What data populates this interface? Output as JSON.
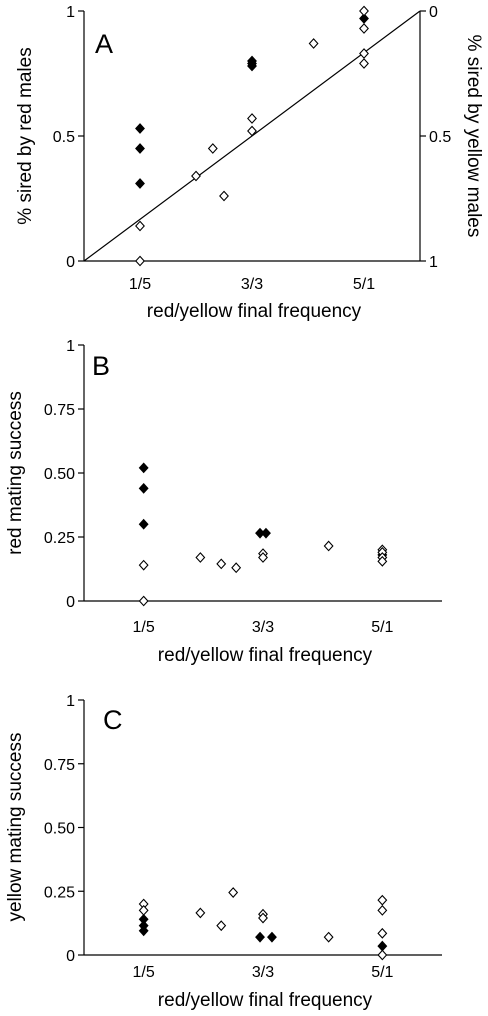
{
  "chart_data": [
    {
      "type": "scatter",
      "panel_label": "A",
      "xlabel": "red/yellow final frequency",
      "ylabel": "% sired by red males",
      "ylabel_right": "% sired by yellow males",
      "categories": [
        "1/5",
        "3/3",
        "5/1"
      ],
      "xlim": [
        0,
        6
      ],
      "ylim": [
        0,
        1
      ],
      "yticks": [
        {
          "value": 0,
          "label": "0"
        },
        {
          "value": 0.5,
          "label": "0.5"
        },
        {
          "value": 1,
          "label": "1"
        }
      ],
      "yticks_right": [
        {
          "value": 1,
          "label": "0"
        },
        {
          "value": 0.5,
          "label": "0.5"
        },
        {
          "value": 0,
          "label": "1"
        }
      ],
      "reference_line": {
        "from": [
          0,
          0
        ],
        "to": [
          6,
          1
        ]
      },
      "series": [
        {
          "marker": "filled-diamond",
          "points": [
            {
              "x": 1,
              "y": 0.53
            },
            {
              "x": 1,
              "y": 0.45
            },
            {
              "x": 1,
              "y": 0.31
            },
            {
              "x": 3,
              "y": 0.8
            },
            {
              "x": 3,
              "y": 0.79
            },
            {
              "x": 3,
              "y": 0.78
            },
            {
              "x": 5,
              "y": 0.97
            }
          ]
        },
        {
          "marker": "open-diamond",
          "points": [
            {
              "x": 1,
              "y": 0.14
            },
            {
              "x": 1,
              "y": 0.0
            },
            {
              "x": 2,
              "y": 0.34
            },
            {
              "x": 2.3,
              "y": 0.45
            },
            {
              "x": 2.5,
              "y": 0.26
            },
            {
              "x": 3,
              "y": 0.57
            },
            {
              "x": 3,
              "y": 0.52
            },
            {
              "x": 4.1,
              "y": 0.87
            },
            {
              "x": 5,
              "y": 1.0
            },
            {
              "x": 5,
              "y": 0.93
            },
            {
              "x": 5,
              "y": 0.83
            },
            {
              "x": 5,
              "y": 0.79
            }
          ]
        }
      ]
    },
    {
      "type": "scatter",
      "panel_label": "B",
      "xlabel": "red/yellow final frequency",
      "ylabel": "red mating success",
      "categories": [
        "1/5",
        "3/3",
        "5/1"
      ],
      "xlim": [
        0,
        6
      ],
      "ylim": [
        0,
        1
      ],
      "yticks": [
        {
          "value": 0,
          "label": "0"
        },
        {
          "value": 0.25,
          "label": "0.25"
        },
        {
          "value": 0.5,
          "label": "0.50"
        },
        {
          "value": 0.75,
          "label": "0.75"
        },
        {
          "value": 1,
          "label": "1"
        }
      ],
      "series": [
        {
          "marker": "filled-diamond",
          "points": [
            {
              "x": 1,
              "y": 0.52
            },
            {
              "x": 1,
              "y": 0.44
            },
            {
              "x": 1,
              "y": 0.3
            },
            {
              "x": 2.95,
              "y": 0.265
            },
            {
              "x": 3.05,
              "y": 0.265
            },
            {
              "x": 5,
              "y": 0.18
            }
          ]
        },
        {
          "marker": "open-diamond",
          "points": [
            {
              "x": 1,
              "y": 0.14
            },
            {
              "x": 1,
              "y": 0.0
            },
            {
              "x": 1.95,
              "y": 0.17
            },
            {
              "x": 2.3,
              "y": 0.145
            },
            {
              "x": 2.55,
              "y": 0.13
            },
            {
              "x": 3,
              "y": 0.185
            },
            {
              "x": 3,
              "y": 0.17
            },
            {
              "x": 4.1,
              "y": 0.215
            },
            {
              "x": 5,
              "y": 0.2
            },
            {
              "x": 5,
              "y": 0.19
            },
            {
              "x": 5,
              "y": 0.17
            },
            {
              "x": 5,
              "y": 0.155
            }
          ]
        }
      ]
    },
    {
      "type": "scatter",
      "panel_label": "C",
      "xlabel": "red/yellow final frequency",
      "ylabel": "yellow mating success",
      "categories": [
        "1/5",
        "3/3",
        "5/1"
      ],
      "xlim": [
        0,
        6
      ],
      "ylim": [
        0,
        1
      ],
      "yticks": [
        {
          "value": 0,
          "label": "0"
        },
        {
          "value": 0.25,
          "label": "0.25"
        },
        {
          "value": 0.5,
          "label": "0.50"
        },
        {
          "value": 0.75,
          "label": "0.75"
        },
        {
          "value": 1,
          "label": "1"
        }
      ],
      "series": [
        {
          "marker": "filled-diamond",
          "points": [
            {
              "x": 1,
              "y": 0.14
            },
            {
              "x": 1,
              "y": 0.115
            },
            {
              "x": 1,
              "y": 0.095
            },
            {
              "x": 2.95,
              "y": 0.07
            },
            {
              "x": 3.15,
              "y": 0.07
            },
            {
              "x": 5,
              "y": 0.035
            }
          ]
        },
        {
          "marker": "open-diamond",
          "points": [
            {
              "x": 1,
              "y": 0.2
            },
            {
              "x": 1,
              "y": 0.175
            },
            {
              "x": 1.95,
              "y": 0.165
            },
            {
              "x": 2.3,
              "y": 0.115
            },
            {
              "x": 2.5,
              "y": 0.245
            },
            {
              "x": 3,
              "y": 0.16
            },
            {
              "x": 3,
              "y": 0.145
            },
            {
              "x": 4.1,
              "y": 0.07
            },
            {
              "x": 5,
              "y": 0.215
            },
            {
              "x": 5,
              "y": 0.175
            },
            {
              "x": 5,
              "y": 0.085
            },
            {
              "x": 5,
              "y": 0.0
            }
          ]
        }
      ]
    }
  ]
}
